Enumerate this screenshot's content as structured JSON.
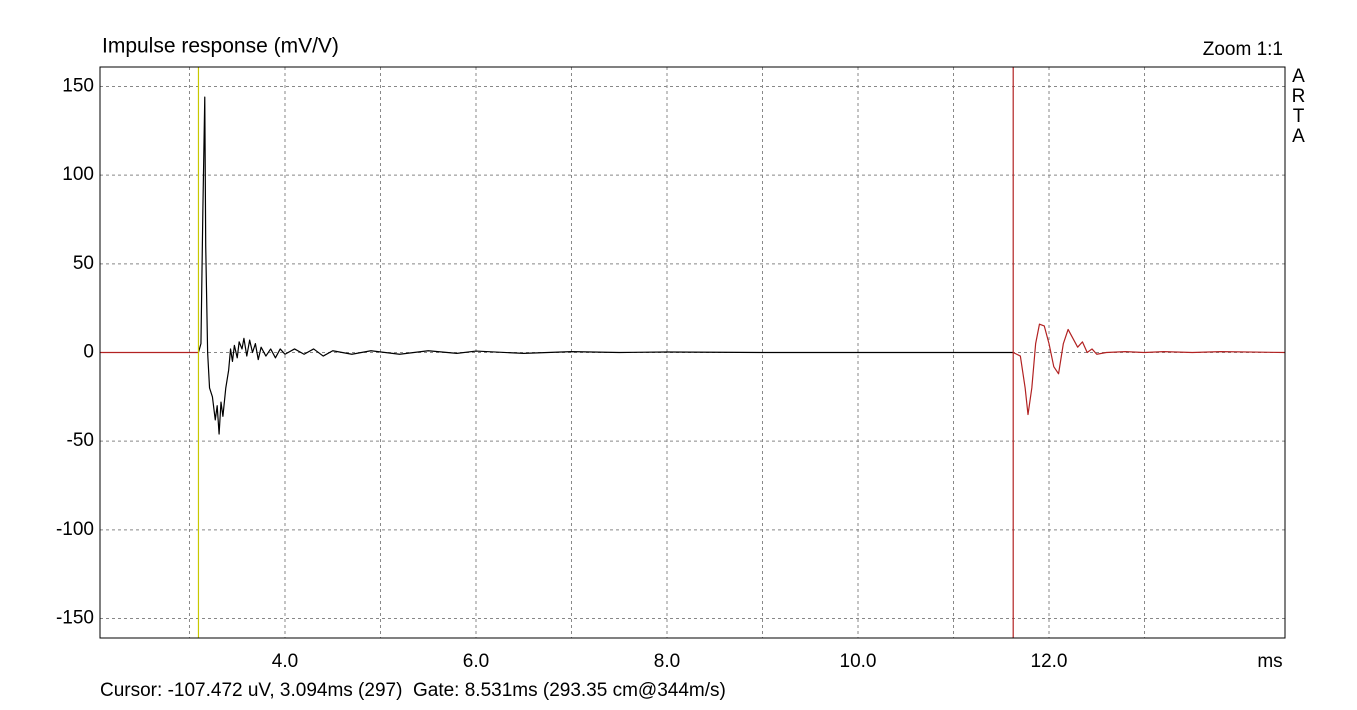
{
  "chart_data": {
    "type": "line",
    "title": "Impulse response (mV/V)",
    "zoom_label": "Zoom 1:1",
    "brand": "ARTA",
    "x_label": "ms",
    "status": "Cursor: -107.472 uV, 3.094ms (297)  Gate: 8.531ms (293.35 cm@344m/s)",
    "xlim": [
      2.063,
      14.471
    ],
    "ylim": [
      -161,
      161
    ],
    "xticks": [
      {
        "value": 4,
        "label": "4.0"
      },
      {
        "value": 6,
        "label": "6.0"
      },
      {
        "value": 8,
        "label": "8.0"
      },
      {
        "value": 10,
        "label": "10.0"
      },
      {
        "value": 12,
        "label": "12.0"
      }
    ],
    "xminorticks": [
      3,
      5,
      7,
      9,
      11,
      13
    ],
    "yticks": [
      -150,
      -100,
      -50,
      0,
      50,
      100,
      150
    ],
    "grid": true,
    "markers": [
      {
        "x": 3.094,
        "color": "#c8c800"
      },
      {
        "x": 11.625,
        "color": "#b22222"
      }
    ],
    "series": [
      {
        "color": "#000000",
        "x": [
          3.094,
          3.12,
          3.14,
          3.16,
          3.17,
          3.19,
          3.21,
          3.24,
          3.27,
          3.29,
          3.31,
          3.33,
          3.35,
          3.38,
          3.41,
          3.43,
          3.45,
          3.47,
          3.5,
          3.52,
          3.55,
          3.57,
          3.6,
          3.63,
          3.66,
          3.69,
          3.72,
          3.75,
          3.8,
          3.85,
          3.9,
          3.95,
          4.0,
          4.1,
          4.2,
          4.3,
          4.4,
          4.5,
          4.7,
          4.9,
          5.2,
          5.5,
          5.8,
          6.0,
          6.5,
          7.0,
          7.5,
          8.0,
          9.0,
          10.0,
          11.0,
          11.625
        ],
        "values": [
          0,
          5,
          80,
          144,
          60,
          0,
          -20,
          -25,
          -38,
          -30,
          -46,
          -28,
          -36,
          -20,
          -10,
          2,
          -5,
          4,
          -3,
          6,
          2,
          8,
          -2,
          7,
          0,
          5,
          -4,
          3,
          -2,
          2,
          -3,
          2,
          -1,
          2,
          -1,
          2,
          -2,
          1,
          -1,
          1,
          -1,
          1,
          -0.5,
          0.8,
          -0.5,
          0.5,
          0,
          0.3,
          0,
          0,
          0,
          0
        ]
      },
      {
        "color": "#b22222",
        "x": [
          2.063,
          3.094,
          3.1,
          11.625,
          11.7,
          11.75,
          11.78,
          11.82,
          11.86,
          11.9,
          11.95,
          12.0,
          12.05,
          12.1,
          12.15,
          12.2,
          12.25,
          12.3,
          12.35,
          12.4,
          12.45,
          12.5,
          12.6,
          12.8,
          13.0,
          13.2,
          13.5,
          13.8,
          14.471
        ],
        "values": [
          0,
          0,
          null,
          0,
          -2,
          -20,
          -35,
          -20,
          5,
          16,
          15,
          5,
          -8,
          -12,
          5,
          13,
          8,
          3,
          6,
          0,
          2,
          -1,
          0,
          0.5,
          0,
          0.5,
          0,
          0.5,
          0
        ]
      }
    ]
  }
}
